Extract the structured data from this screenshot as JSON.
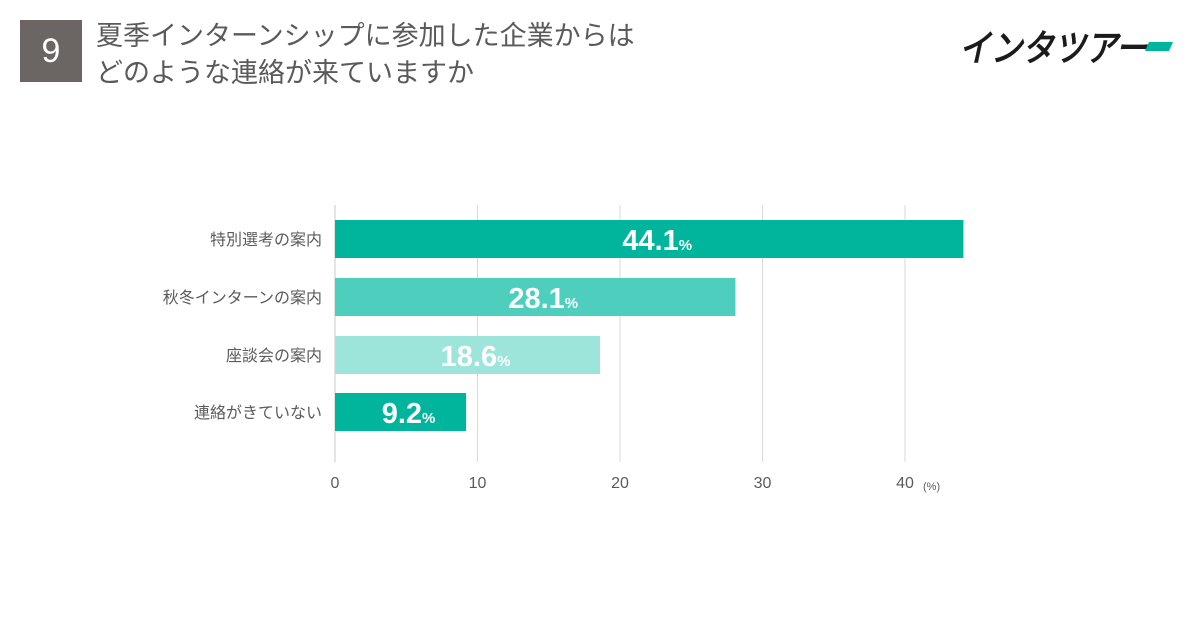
{
  "badge": "9",
  "title": "夏季インターンシップに参加した企業からは\nどのような連絡が来ていますか",
  "brand": {
    "name": "インタツアー",
    "colors": {
      "text": "#1b1b1b",
      "accent": "#00b59c"
    }
  },
  "chart_data": {
    "type": "bar",
    "orientation": "horizontal",
    "categories": [
      "特別選考の案内",
      "秋冬インターンの案内",
      "座談会の案内",
      "連絡がきていない"
    ],
    "values": [
      44.1,
      28.1,
      18.6,
      9.2
    ],
    "value_labels": [
      "44.1",
      "28.1",
      "18.6",
      "9.2"
    ],
    "value_suffix": "%",
    "bar_colors": [
      "#00b59c",
      "#4ecfbd",
      "#9de4da",
      "#00b59c"
    ],
    "xlim": [
      0,
      43
    ],
    "xticks": [
      0,
      10,
      20,
      30,
      40
    ],
    "x_unit": "(%)",
    "grid": true,
    "legend": "none"
  }
}
